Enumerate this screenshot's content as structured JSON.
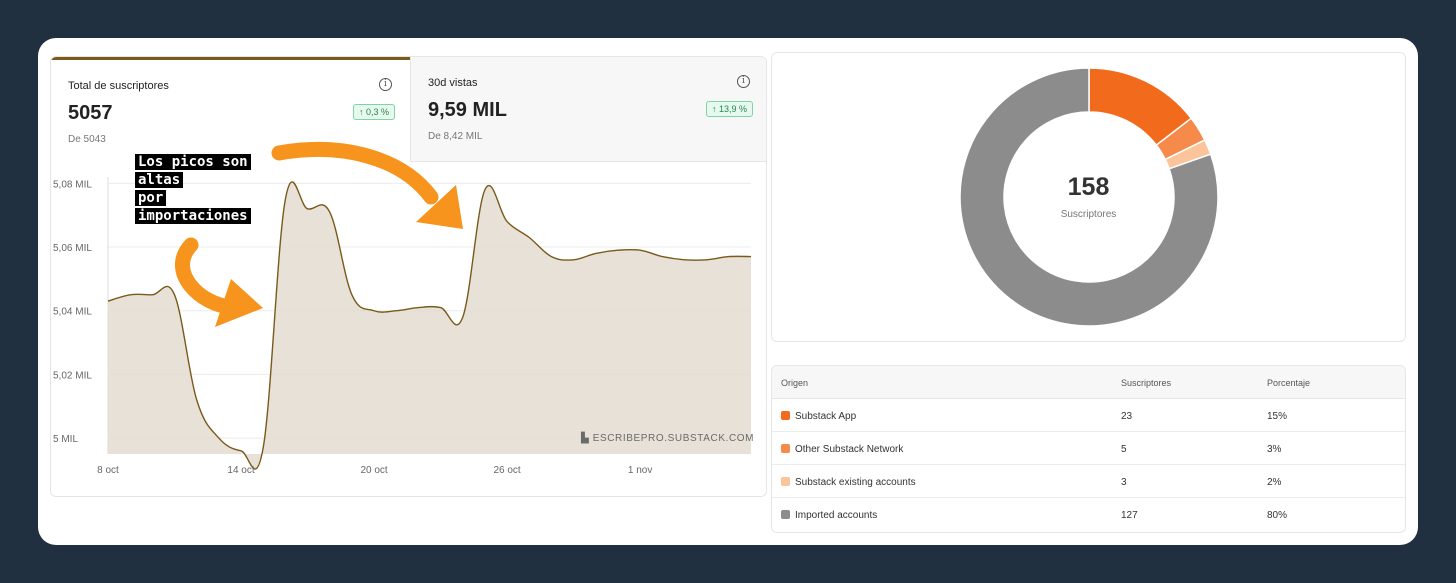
{
  "stats": [
    {
      "label": "Total de suscriptores",
      "value": "5057",
      "sub": "De 5043",
      "badge": "0,3 %"
    },
    {
      "label": "30d vistas",
      "value": "9,59 MIL",
      "sub": "De 8,42 MIL",
      "badge": "13,9 %"
    }
  ],
  "info_icon": "i",
  "badge_arrow": "↑",
  "annotation": [
    "Los picos son",
    "altas",
    "por",
    "importaciones"
  ],
  "watermark": "ESCRIBEPRO.SUBSTACK.COM",
  "colors": {
    "line": "#7a5a1a",
    "area": "#e3dcd0",
    "arrow": "#f7941d",
    "accent_top": "#7a5a1a",
    "badge_green": "#1f8a4c"
  },
  "chart_data": {
    "type": "area",
    "xlabel": "",
    "ylabel": "",
    "x_tick_labels": [
      "8 oct",
      "14 oct",
      "20 oct",
      "26 oct",
      "1 nov"
    ],
    "y_tick_labels": [
      "5,08 MIL",
      "5,06 MIL",
      "5,04 MIL",
      "5,02 MIL",
      "5 MIL"
    ],
    "y_ticks": [
      5080,
      5060,
      5040,
      5020,
      5000
    ],
    "ylim": [
      4995,
      5082
    ],
    "grid": true,
    "series": [
      {
        "values": [
          5043,
          5045,
          5045,
          5045,
          5012,
          5000,
          4996,
          4997,
          5075,
          5072,
          5071,
          5045,
          5040,
          5040,
          5041,
          5041,
          5038,
          5078,
          5068,
          5063,
          5057,
          5056,
          5058,
          5059,
          5059,
          5057,
          5056,
          5056,
          5057,
          5057
        ]
      }
    ]
  },
  "donut": {
    "total": "158",
    "caption": "Suscriptores",
    "segments": [
      {
        "name": "Substack App",
        "value": 23,
        "color": "#f26b1d"
      },
      {
        "name": "Other Substack Network",
        "value": 5,
        "color": "#f58a4a"
      },
      {
        "name": "Substack existing accounts",
        "value": 3,
        "color": "#fbc49a"
      },
      {
        "name": "Imported accounts",
        "value": 127,
        "color": "#8c8c8c"
      }
    ]
  },
  "table": {
    "headers": [
      "Origen",
      "Suscriptores",
      "Porcentaje"
    ],
    "rows": [
      {
        "origin": "Substack App",
        "subs": "23",
        "pct": "15%",
        "color": "#f26b1d"
      },
      {
        "origin": "Other Substack Network",
        "subs": "5",
        "pct": "3%",
        "color": "#f58a4a"
      },
      {
        "origin": "Substack existing accounts",
        "subs": "3",
        "pct": "2%",
        "color": "#fbc49a"
      },
      {
        "origin": "Imported accounts",
        "subs": "127",
        "pct": "80%",
        "color": "#8c8c8c"
      }
    ]
  }
}
